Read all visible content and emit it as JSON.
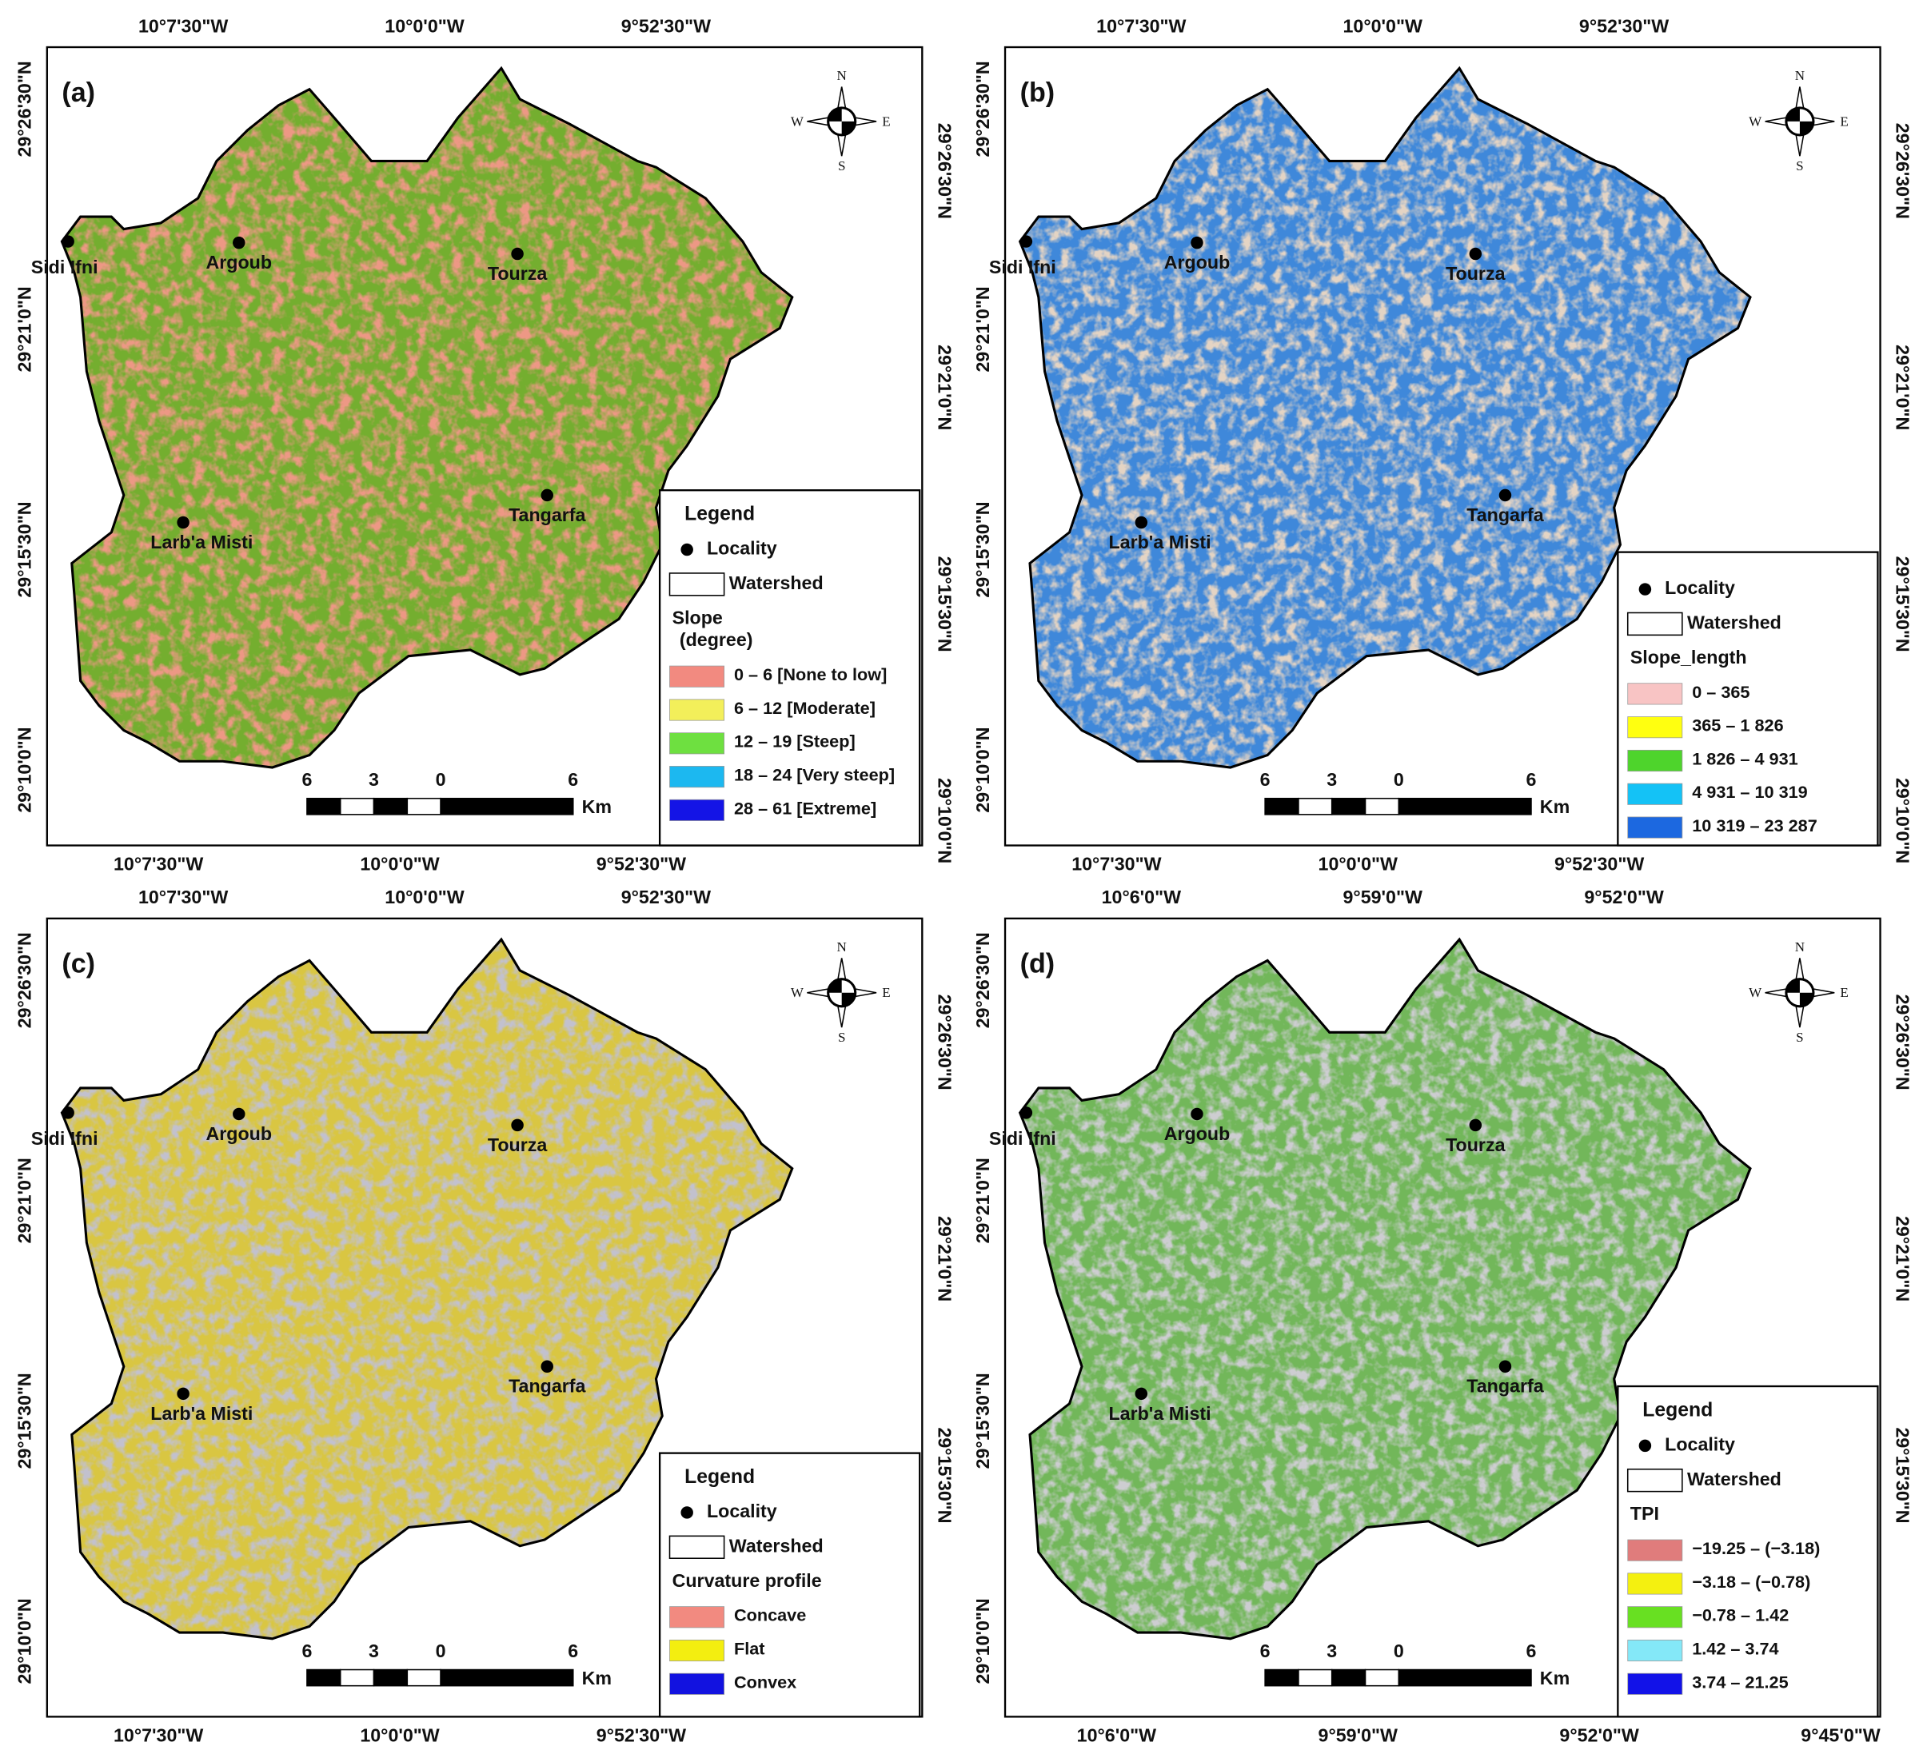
{
  "panels": [
    {
      "label": "(a)",
      "top_ticks": [
        "10°7'30\"W",
        "10°0'0\"W",
        "9°52'30\"W"
      ],
      "bottom_ticks": [
        "10°7'30\"W",
        "10°0'0\"W",
        "9°52'30\"W"
      ],
      "left_ticks": [
        "29°26'30\"N",
        "29°21'0\"N",
        "29°15'30\"N",
        "29°10'0\"N"
      ],
      "right_ticks": [
        "29°26'30\"N",
        "29°21'0\"N",
        "29°15'30\"N",
        "29°10'0\"N"
      ],
      "localities": [
        "Sidi Ifni",
        "Argoub",
        "Tourza",
        "Tangarfa",
        "Larb'a Misti"
      ],
      "compass": [
        "N",
        "E",
        "S",
        "W"
      ],
      "scale_bar": [
        "6",
        "3",
        "0",
        "6",
        "Km"
      ],
      "legend": {
        "title": "Legend",
        "locality": "Locality",
        "watershed": "Watershed",
        "variable": [
          "Slope",
          "(degree)"
        ],
        "items": [
          {
            "label": "0 – 6 [None to low]",
            "color": "#f28a80"
          },
          {
            "label": "6 – 12 [Moderate]",
            "color": "#f3ef5a"
          },
          {
            "label": "12 – 19 [Steep]",
            "color": "#6ee040"
          },
          {
            "label": "18 – 24 [Very steep]",
            "color": "#1cb8f0"
          },
          {
            "label": "28 – 61 [Extreme]",
            "color": "#1414e6"
          }
        ]
      }
    },
    {
      "label": "(b)",
      "top_ticks": [
        "10°7'30\"W",
        "10°0'0\"W",
        "9°52'30\"W"
      ],
      "bottom_ticks": [
        "10°7'30\"W",
        "10°0'0\"W",
        "9°52'30\"W"
      ],
      "left_ticks": [
        "29°26'30\"N",
        "29°21'0\"N",
        "29°15'30\"N",
        "29°10'0\"N"
      ],
      "right_ticks": [
        "29°26'30\"N",
        "29°21'0\"N",
        "29°15'30\"N",
        "29°10'0\"N"
      ],
      "localities": [
        "Sidi Ifni",
        "Argoub",
        "Tourza",
        "Tangarfa",
        "Larb'a Misti"
      ],
      "compass": [
        "N",
        "E",
        "S",
        "W"
      ],
      "scale_bar": [
        "6",
        "3",
        "0",
        "6",
        "Km"
      ],
      "legend": {
        "locality": "Locality",
        "watershed": "Watershed",
        "variable": [
          "Slope_length"
        ],
        "items": [
          {
            "label": "0 – 365",
            "color": "#f8c4c4"
          },
          {
            "label": "365 – 1 826",
            "color": "#ffff10"
          },
          {
            "label": "1 826 – 4 931",
            "color": "#4ed42c"
          },
          {
            "label": "4 931 – 10 319",
            "color": "#14c2f6"
          },
          {
            "label": "10 319 – 23 287",
            "color": "#1c68e0"
          }
        ]
      }
    },
    {
      "label": "(c)",
      "top_ticks": [
        "10°7'30\"W",
        "10°0'0\"W",
        "9°52'30\"W"
      ],
      "bottom_ticks": [
        "10°7'30\"W",
        "10°0'0\"W",
        "9°52'30\"W"
      ],
      "left_ticks": [
        "29°26'30\"N",
        "29°21'0\"N",
        "29°15'30\"N",
        "29°10'0\"N"
      ],
      "right_ticks": [
        "29°26'30\"N",
        "29°21'0\"N",
        "29°15'30\"N"
      ],
      "localities": [
        "Sidi Ifni",
        "Argoub",
        "Tourza",
        "Tangarfa",
        "Larb'a Misti"
      ],
      "compass": [
        "N",
        "E",
        "S",
        "W"
      ],
      "scale_bar": [
        "6",
        "3",
        "0",
        "6",
        "Km"
      ],
      "legend": {
        "title": "Legend",
        "locality": "Locality",
        "watershed": "Watershed",
        "variable": [
          "Curvature profile"
        ],
        "items": [
          {
            "label": "Concave",
            "color": "#f28a80"
          },
          {
            "label": "Flat",
            "color": "#f3ee10"
          },
          {
            "label": "Convex",
            "color": "#1212e0"
          }
        ]
      }
    },
    {
      "label": "(d)",
      "top_ticks": [
        "10°6'0\"W",
        "9°59'0\"W",
        "9°52'0\"W"
      ],
      "bottom_ticks": [
        "10°6'0\"W",
        "9°59'0\"W",
        "9°52'0\"W",
        "9°45'0\"W"
      ],
      "left_ticks": [
        "29°26'30\"N",
        "29°21'0\"N",
        "29°15'30\"N",
        "29°10'0\"N"
      ],
      "right_ticks": [
        "29°26'30\"N",
        "29°21'0\"N",
        "29°15'30\"N"
      ],
      "localities": [
        "Sidi Ifni",
        "Argoub",
        "Tourza",
        "Tangarfa",
        "Larb'a Misti"
      ],
      "compass": [
        "N",
        "E",
        "S",
        "W"
      ],
      "scale_bar": [
        "6",
        "3",
        "0",
        "6",
        "Km"
      ],
      "legend": {
        "title": "Legend",
        "locality": "Locality",
        "watershed": "Watershed",
        "variable": [
          "TPI"
        ],
        "items": [
          {
            "label": "−19.25 – (−3.18)",
            "color": "#e07c7c"
          },
          {
            "label": "−3.18 – (−0.78)",
            "color": "#f4f010"
          },
          {
            "label": "−0.78 – 1.42",
            "color": "#68e022"
          },
          {
            "label": "1.42 – 3.74",
            "color": "#84e8f8"
          },
          {
            "label": "3.74 – 21.25",
            "color": "#1212e8"
          }
        ]
      }
    }
  ]
}
